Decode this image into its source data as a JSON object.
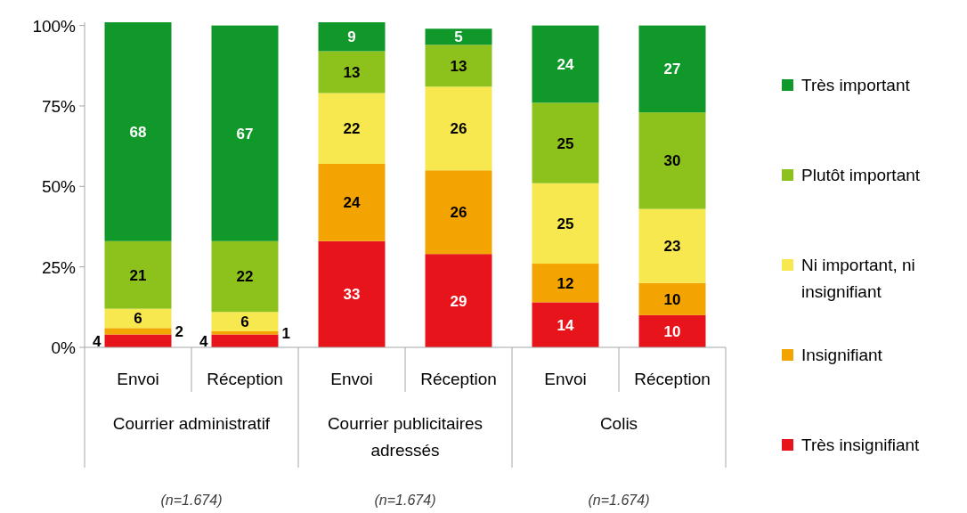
{
  "chart_data": {
    "type": "bar",
    "stacked": true,
    "data_labels": true,
    "legend": "right",
    "categories": [
      "Envoi",
      "Réception",
      "Envoi",
      "Réception",
      "Envoi",
      "Réception"
    ],
    "series": [
      {
        "name": "Très insignifiant",
        "color": "#e8141c",
        "values": [
          4,
          4,
          33,
          29,
          14,
          10
        ]
      },
      {
        "name": "Insignifiant",
        "color": "#f4a400",
        "values": [
          2,
          1,
          24,
          26,
          12,
          10
        ]
      },
      {
        "name": "Ni important, ni insignifiant",
        "color": "#f6e84e",
        "values": [
          6,
          6,
          22,
          26,
          25,
          23
        ]
      },
      {
        "name": "Plutôt important",
        "color": "#8dc21c",
        "values": [
          21,
          22,
          13,
          13,
          25,
          30
        ]
      },
      {
        "name": "Très important",
        "color": "#10982a",
        "values": [
          68,
          67,
          9,
          5,
          24,
          27
        ]
      }
    ],
    "ylim": [
      0,
      101
    ],
    "yticks": [
      {
        "value": 0,
        "label": "0%"
      },
      {
        "value": 25,
        "label": "25%"
      },
      {
        "value": 50,
        "label": "50%"
      },
      {
        "value": 75,
        "label": "75%"
      },
      {
        "value": 100,
        "label": "100%"
      }
    ],
    "annotations": [
      "Courrier administratif",
      "Courrier publicitaires adressés",
      "Colis",
      "(n=1.674)",
      "(n=1.674)",
      "(n=1.674)"
    ]
  }
}
